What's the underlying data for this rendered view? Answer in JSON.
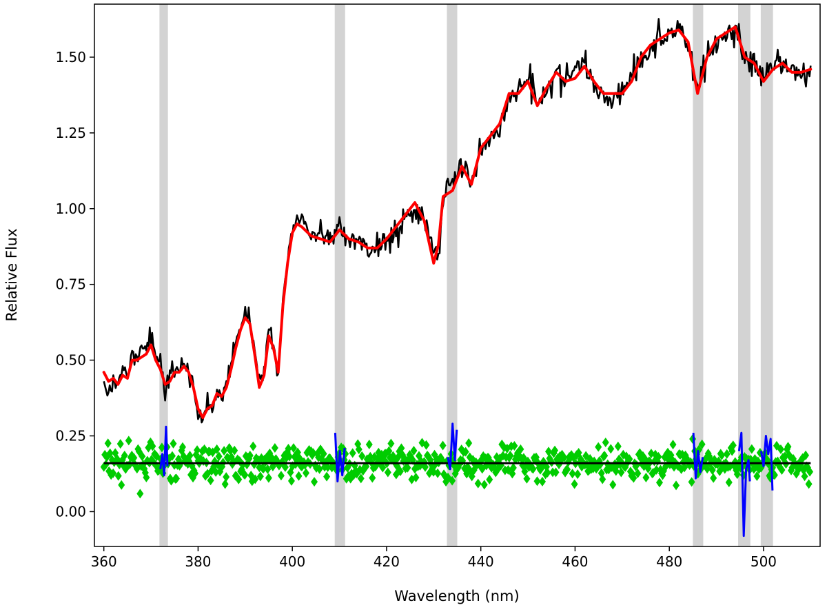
{
  "chart_data": {
    "type": "line",
    "title": "",
    "xlabel": "Wavelength (nm)",
    "ylabel": "Relative Flux",
    "xlim": [
      358,
      512
    ],
    "ylim": [
      -0.115,
      1.675
    ],
    "xticks": [
      360,
      380,
      400,
      420,
      440,
      460,
      480,
      500
    ],
    "yticks": [
      0.0,
      0.25,
      0.5,
      0.75,
      1.0,
      1.25,
      1.5
    ],
    "ytick_labels": [
      "0.00",
      "0.25",
      "0.50",
      "0.75",
      "1.00",
      "1.25",
      "1.50"
    ],
    "grid": false,
    "legend": "none",
    "masked_regions": [
      [
        371.8,
        373.6
      ],
      [
        409.0,
        411.2
      ],
      [
        432.8,
        435.0
      ],
      [
        485.0,
        487.2
      ],
      [
        494.6,
        497.2
      ],
      [
        499.4,
        502.0
      ]
    ],
    "series": [
      {
        "role": "observed spectrum",
        "color": "#000000",
        "x": [
          360,
          361,
          362,
          363,
          364,
          365,
          366,
          367,
          368,
          369,
          370,
          371,
          372,
          373,
          374,
          375,
          376,
          377,
          378,
          379,
          380,
          381,
          382,
          383,
          384,
          385,
          386,
          387,
          388,
          389,
          390,
          391,
          392,
          393,
          394,
          395,
          396,
          397,
          398,
          399,
          400,
          402,
          404,
          406,
          408,
          410,
          412,
          414,
          416,
          418,
          420,
          422,
          424,
          426,
          428,
          430,
          431,
          432,
          434,
          436,
          438,
          440,
          442,
          444,
          446,
          448,
          450,
          452,
          454,
          456,
          458,
          460,
          462,
          464,
          466,
          468,
          470,
          472,
          474,
          476,
          478,
          480,
          482,
          484,
          486,
          488,
          490,
          492,
          494,
          496,
          498,
          500,
          502,
          504,
          506,
          508,
          510
        ],
        "y": [
          0.45,
          0.38,
          0.44,
          0.4,
          0.47,
          0.44,
          0.52,
          0.5,
          0.53,
          0.55,
          0.58,
          0.52,
          0.49,
          0.4,
          0.44,
          0.47,
          0.46,
          0.5,
          0.46,
          0.4,
          0.33,
          0.3,
          0.36,
          0.34,
          0.4,
          0.38,
          0.42,
          0.48,
          0.56,
          0.62,
          0.67,
          0.63,
          0.54,
          0.42,
          0.46,
          0.6,
          0.55,
          0.47,
          0.7,
          0.82,
          0.94,
          0.98,
          0.9,
          0.92,
          0.88,
          0.94,
          0.88,
          0.9,
          0.86,
          0.88,
          0.9,
          0.92,
          0.97,
          1.0,
          0.96,
          0.86,
          0.84,
          1.04,
          1.1,
          1.14,
          1.08,
          1.2,
          1.24,
          1.26,
          1.36,
          1.4,
          1.44,
          1.36,
          1.4,
          1.44,
          1.42,
          1.46,
          1.48,
          1.4,
          1.38,
          1.36,
          1.4,
          1.44,
          1.5,
          1.52,
          1.56,
          1.58,
          1.6,
          1.54,
          1.4,
          1.5,
          1.55,
          1.56,
          1.6,
          1.5,
          1.48,
          1.42,
          1.46,
          1.48,
          1.45,
          1.44,
          1.45
        ]
      },
      {
        "role": "model fit",
        "color": "#ff0000",
        "x": [
          360,
          361,
          362,
          363,
          364,
          365,
          366,
          367,
          368,
          369,
          370,
          371,
          372,
          373,
          374,
          375,
          376,
          377,
          378,
          379,
          380,
          381,
          382,
          383,
          384,
          385,
          386,
          387,
          388,
          389,
          390,
          391,
          392,
          393,
          394,
          395,
          396,
          397,
          398,
          399,
          400,
          401,
          402,
          404,
          406,
          408,
          410,
          412,
          414,
          416,
          418,
          420,
          422,
          424,
          426,
          428,
          430,
          431,
          432,
          434,
          436,
          438,
          440,
          442,
          444,
          446,
          448,
          450,
          452,
          454,
          456,
          458,
          460,
          462,
          464,
          466,
          468,
          470,
          472,
          474,
          476,
          478,
          480,
          482,
          484,
          486,
          488,
          490,
          492,
          494,
          496,
          498,
          500,
          502,
          504,
          506,
          508,
          510
        ],
        "y": [
          0.46,
          0.43,
          0.44,
          0.42,
          0.45,
          0.44,
          0.5,
          0.5,
          0.51,
          0.52,
          0.55,
          0.5,
          0.47,
          0.42,
          0.43,
          0.46,
          0.46,
          0.48,
          0.46,
          0.41,
          0.34,
          0.31,
          0.34,
          0.35,
          0.39,
          0.38,
          0.41,
          0.47,
          0.54,
          0.6,
          0.64,
          0.62,
          0.52,
          0.41,
          0.45,
          0.58,
          0.54,
          0.46,
          0.68,
          0.82,
          0.92,
          0.95,
          0.94,
          0.91,
          0.9,
          0.89,
          0.93,
          0.9,
          0.89,
          0.87,
          0.87,
          0.9,
          0.94,
          0.98,
          1.02,
          0.96,
          0.82,
          0.88,
          1.04,
          1.06,
          1.14,
          1.08,
          1.2,
          1.24,
          1.28,
          1.38,
          1.38,
          1.42,
          1.34,
          1.4,
          1.45,
          1.42,
          1.43,
          1.47,
          1.42,
          1.38,
          1.38,
          1.38,
          1.42,
          1.5,
          1.54,
          1.56,
          1.58,
          1.59,
          1.55,
          1.38,
          1.5,
          1.56,
          1.58,
          1.6,
          1.5,
          1.48,
          1.42,
          1.46,
          1.48,
          1.45,
          1.45,
          1.46
        ]
      },
      {
        "role": "residuals",
        "color": "#00cc00",
        "marker": "diamond",
        "baseline": 0.16,
        "x_range": [
          360,
          510
        ],
        "scatter_sigma": 0.055
      },
      {
        "role": "zero reference line",
        "color": "#000000",
        "x": [
          360,
          510
        ],
        "y": [
          0.16,
          0.16
        ]
      },
      {
        "role": "masked residuals",
        "color": "#0000ff",
        "segments": [
          {
            "x": [
              372.0,
              372.4,
              372.8,
              373.2,
              373.5
            ],
            "y": [
              0.14,
              0.19,
              0.12,
              0.28,
              0.15
            ]
          },
          {
            "x": [
              409.1,
              409.6,
              410.1,
              410.6,
              411.1
            ],
            "y": [
              0.26,
              0.1,
              0.2,
              0.12,
              0.21
            ]
          },
          {
            "x": [
              433.0,
              433.5,
              434.0,
              434.5,
              434.9
            ],
            "y": [
              0.18,
              0.14,
              0.29,
              0.17,
              0.27
            ]
          },
          {
            "x": [
              485.1,
              485.6,
              486.1,
              486.6,
              487.1
            ],
            "y": [
              0.26,
              0.11,
              0.2,
              0.13,
              0.18
            ]
          },
          {
            "x": [
              494.8,
              495.3,
              495.8,
              496.3,
              496.8,
              497.1
            ],
            "y": [
              0.2,
              0.26,
              -0.08,
              0.14,
              0.17,
              0.1
            ]
          },
          {
            "x": [
              499.5,
              500.0,
              500.5,
              501.0,
              501.5,
              501.9
            ],
            "y": [
              0.2,
              0.15,
              0.25,
              0.19,
              0.24,
              0.07
            ]
          }
        ]
      }
    ]
  }
}
